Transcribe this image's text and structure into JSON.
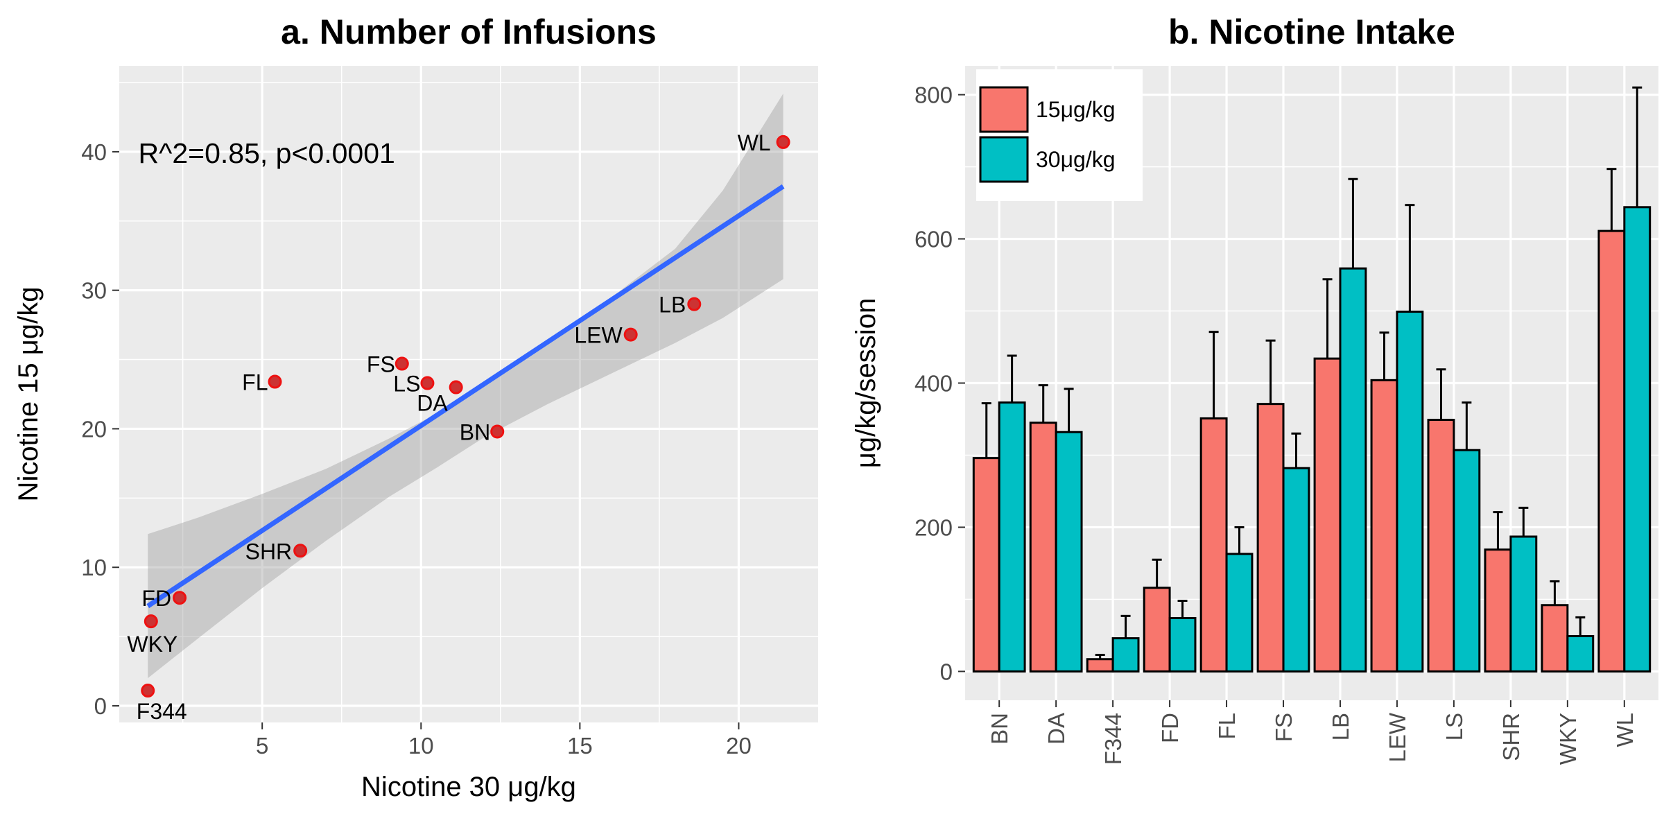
{
  "chart_data": [
    {
      "type": "scatter",
      "title": "a. Number of Infusions",
      "xlabel": "Nicotine 30 μg/kg",
      "ylabel": "Nicotine 15 μg/kg",
      "xlim": [
        0.5,
        22.5
      ],
      "ylim": [
        -1.2,
        46.2
      ],
      "xticks": [
        5,
        10,
        15,
        20
      ],
      "yticks": [
        0,
        10,
        20,
        30,
        40
      ],
      "grid": true,
      "annotation": "R^2=0.85, p<0.0001",
      "points": [
        {
          "label": "WL",
          "x": 21.4,
          "y": 40.7
        },
        {
          "label": "LB",
          "x": 18.6,
          "y": 29.0
        },
        {
          "label": "LEW",
          "x": 16.6,
          "y": 26.8
        },
        {
          "label": "FS",
          "x": 9.4,
          "y": 24.7
        },
        {
          "label": "LS",
          "x": 10.2,
          "y": 23.3
        },
        {
          "label": "DA",
          "x": 11.1,
          "y": 23.0
        },
        {
          "label": "FL",
          "x": 5.4,
          "y": 23.4
        },
        {
          "label": "BN",
          "x": 12.4,
          "y": 19.8
        },
        {
          "label": "SHR",
          "x": 6.2,
          "y": 11.2
        },
        {
          "label": "FD",
          "x": 2.4,
          "y": 7.8
        },
        {
          "label": "WKY",
          "x": 1.5,
          "y": 6.1
        },
        {
          "label": "F344",
          "x": 1.4,
          "y": 1.1
        }
      ],
      "fit": {
        "x": [
          1.4,
          21.4
        ],
        "y": [
          7.2,
          37.5
        ]
      },
      "confidence_band": {
        "x": [
          1.4,
          3,
          5,
          7,
          9,
          10.5,
          12,
          14,
          16,
          18,
          19.5,
          21.4
        ],
        "lower": [
          2.0,
          4.9,
          8.5,
          11.9,
          15.1,
          17.2,
          19.4,
          21.8,
          24.0,
          26.2,
          28.0,
          30.8
        ],
        "upper": [
          12.4,
          13.6,
          15.3,
          17.1,
          19.3,
          21.1,
          23.1,
          26.2,
          29.5,
          33.0,
          37.2,
          44.2
        ]
      }
    },
    {
      "type": "bar",
      "title": "b. Nicotine Intake",
      "xlabel": "",
      "ylabel": "μg/kg/session",
      "ylim": [
        -40,
        840
      ],
      "yticks": [
        0,
        200,
        400,
        600,
        800
      ],
      "grid": true,
      "legend_position": "top-left",
      "categories": [
        "BN",
        "DA",
        "F344",
        "FD",
        "FL",
        "FS",
        "LB",
        "LEW",
        "LS",
        "SHR",
        "WKY",
        "WL"
      ],
      "series": [
        {
          "name": "15μg/kg",
          "color": "#f8766d",
          "values": [
            296,
            345,
            17,
            116,
            351,
            371,
            434,
            404,
            349,
            169,
            92,
            611
          ],
          "error": [
            76,
            52,
            6,
            39,
            120,
            88,
            110,
            66,
            70,
            52,
            33,
            86
          ]
        },
        {
          "name": "30μg/kg",
          "color": "#00bfc4",
          "values": [
            373,
            332,
            46,
            74,
            163,
            282,
            559,
            499,
            307,
            187,
            49,
            644
          ],
          "error": [
            65,
            60,
            31,
            24,
            37,
            48,
            124,
            148,
            66,
            40,
            26,
            166
          ]
        }
      ]
    }
  ]
}
